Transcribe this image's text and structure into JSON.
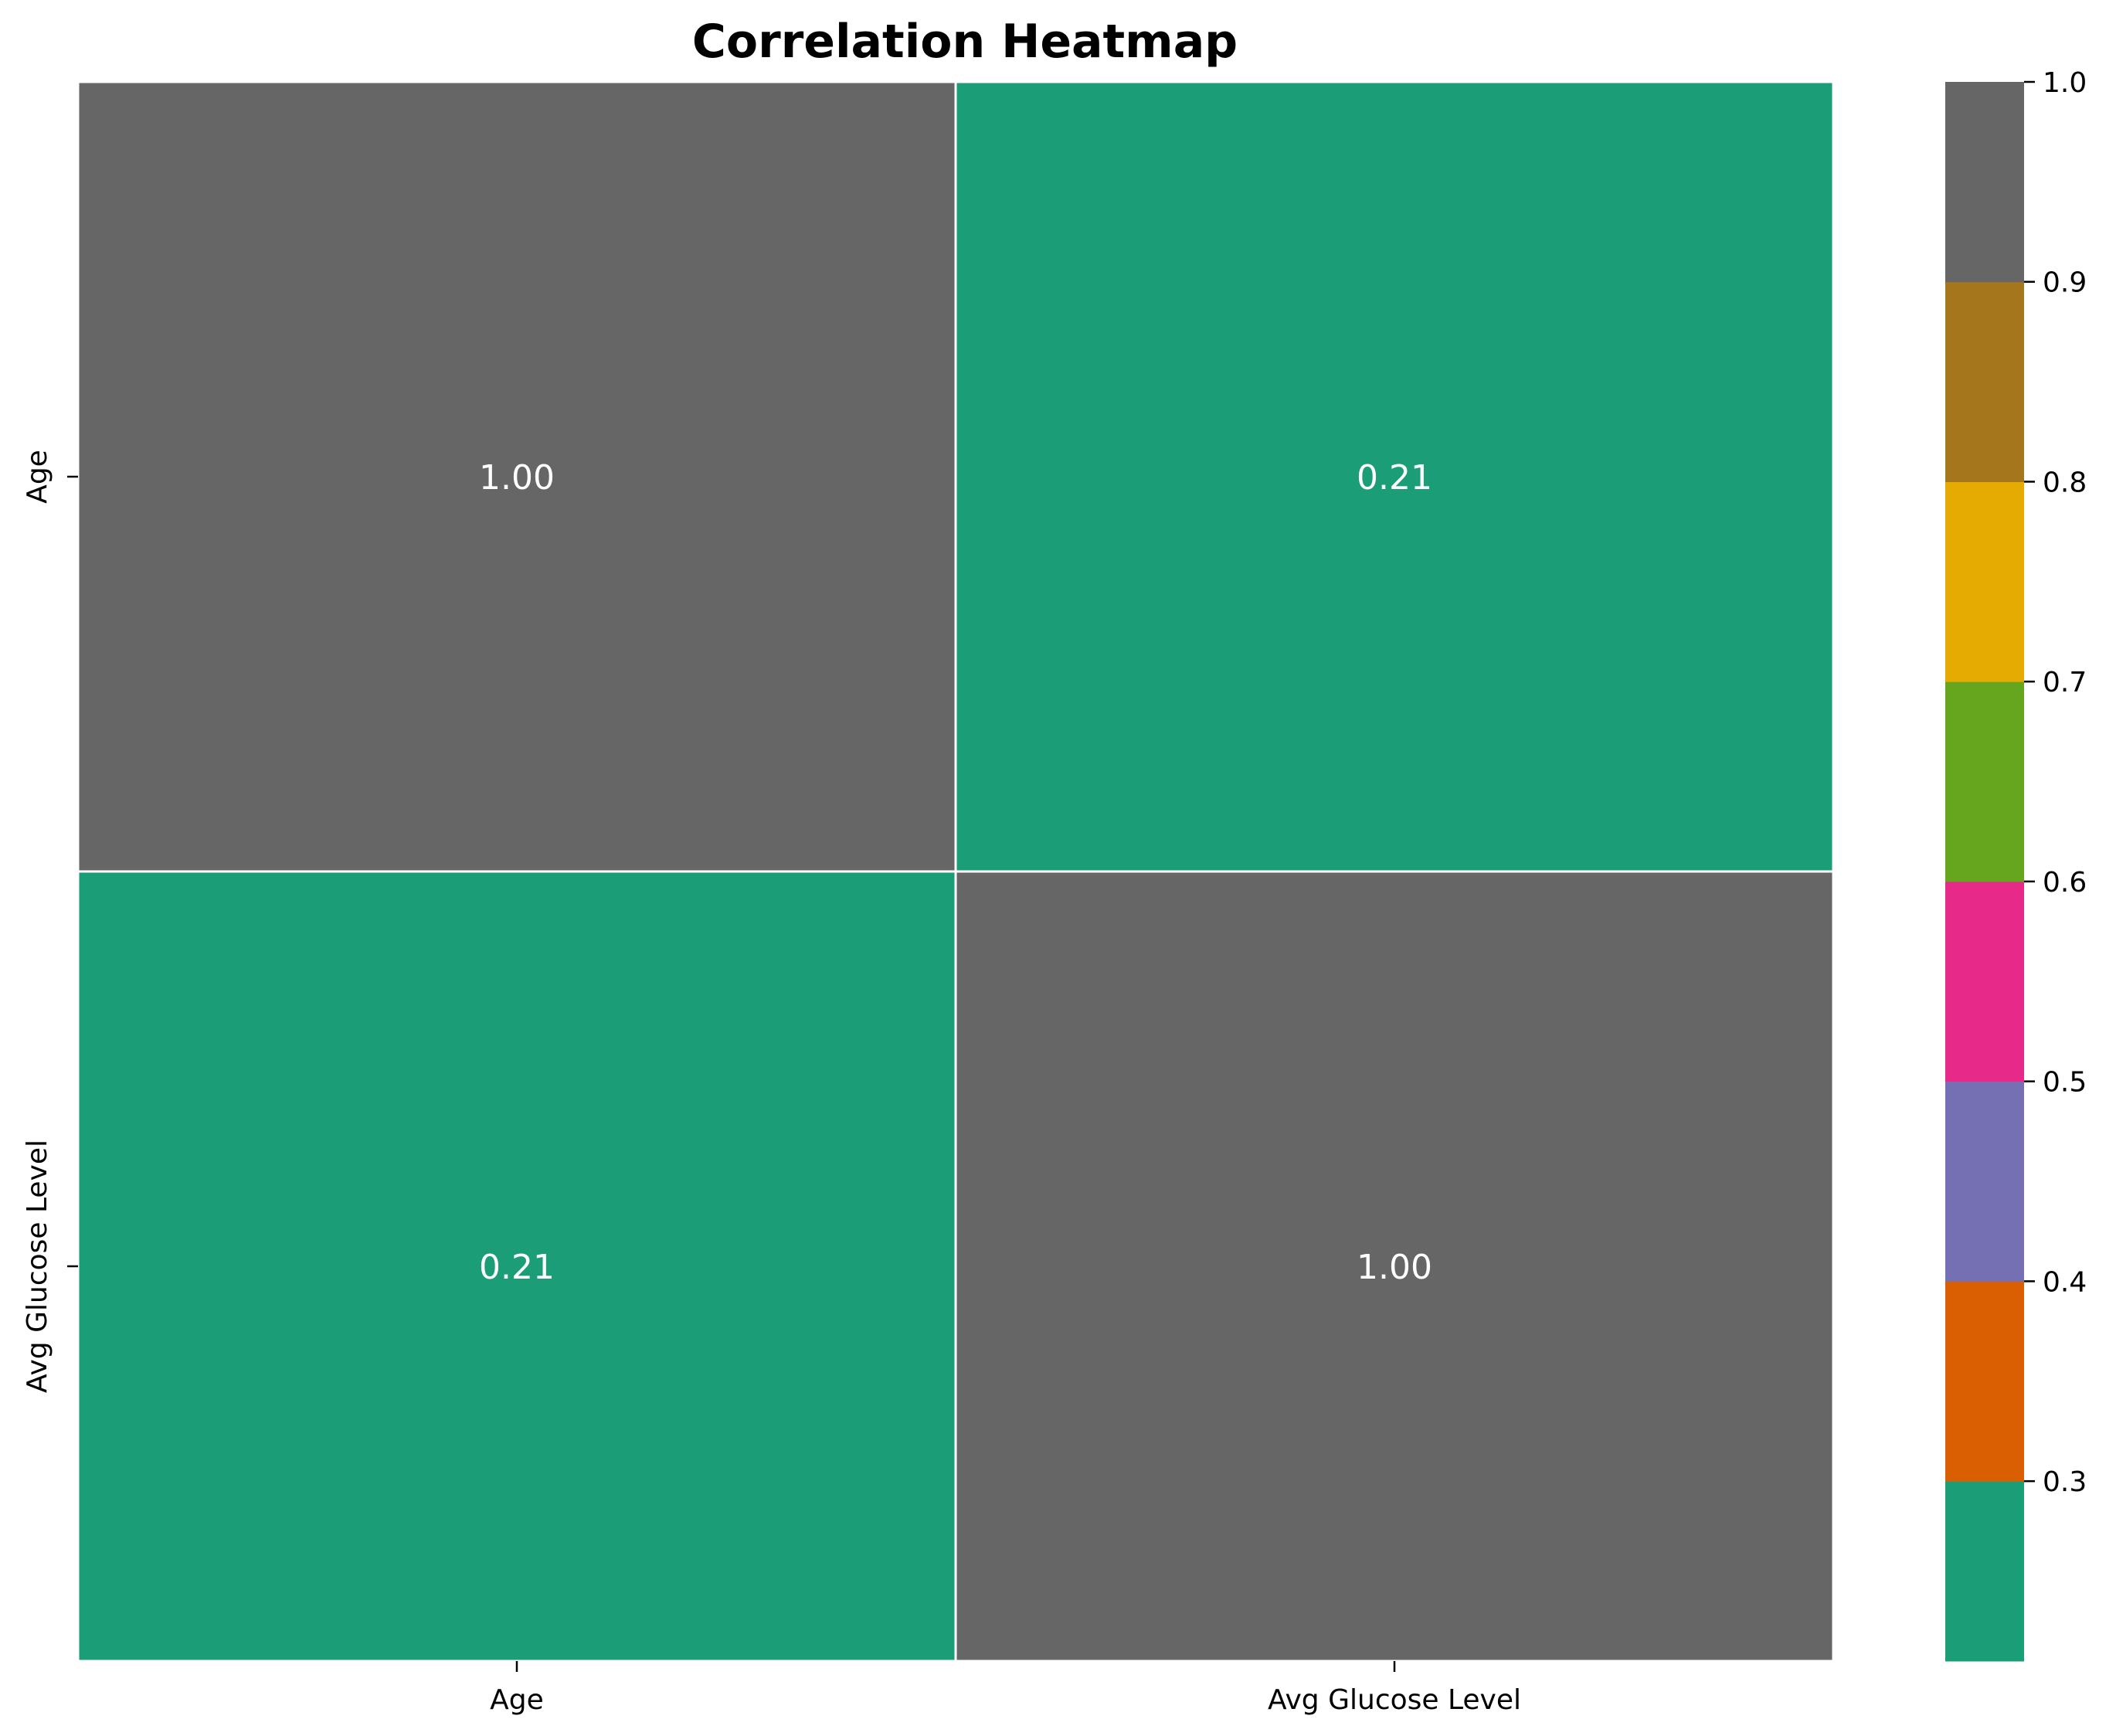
{
  "chart_data": {
    "type": "heatmap",
    "title": "Correlation Heatmap",
    "xlabel": "",
    "ylabel": "",
    "x_categories": [
      "Age",
      "Avg Glucose Level"
    ],
    "y_categories": [
      "Age",
      "Avg Glucose Level"
    ],
    "values": [
      [
        1.0,
        0.21
      ],
      [
        0.21,
        1.0
      ]
    ],
    "cell_labels": [
      [
        "1.00",
        "0.21"
      ],
      [
        "0.21",
        "1.00"
      ]
    ],
    "colorbar": {
      "range": [
        0.21,
        1.0
      ],
      "ticks": [
        0.3,
        0.4,
        0.5,
        0.6,
        0.7,
        0.8,
        0.9,
        1.0
      ],
      "tick_labels": [
        "0.3",
        "0.4",
        "0.5",
        "0.6",
        "0.7",
        "0.8",
        "0.9",
        "1.0"
      ],
      "bands": [
        {
          "from": 0.21,
          "to": 0.3,
          "color": "#1b9e77"
        },
        {
          "from": 0.3,
          "to": 0.4,
          "color": "#d95f02"
        },
        {
          "from": 0.4,
          "to": 0.5,
          "color": "#7570b3"
        },
        {
          "from": 0.5,
          "to": 0.6,
          "color": "#e7298a"
        },
        {
          "from": 0.6,
          "to": 0.7,
          "color": "#66a61e"
        },
        {
          "from": 0.7,
          "to": 0.8,
          "color": "#e6ab02"
        },
        {
          "from": 0.8,
          "to": 0.9,
          "color": "#a6761d"
        },
        {
          "from": 0.9,
          "to": 1.0,
          "color": "#666666"
        }
      ]
    },
    "annotation_color": "#ffffff",
    "grid_line_color": "#ffffff"
  }
}
